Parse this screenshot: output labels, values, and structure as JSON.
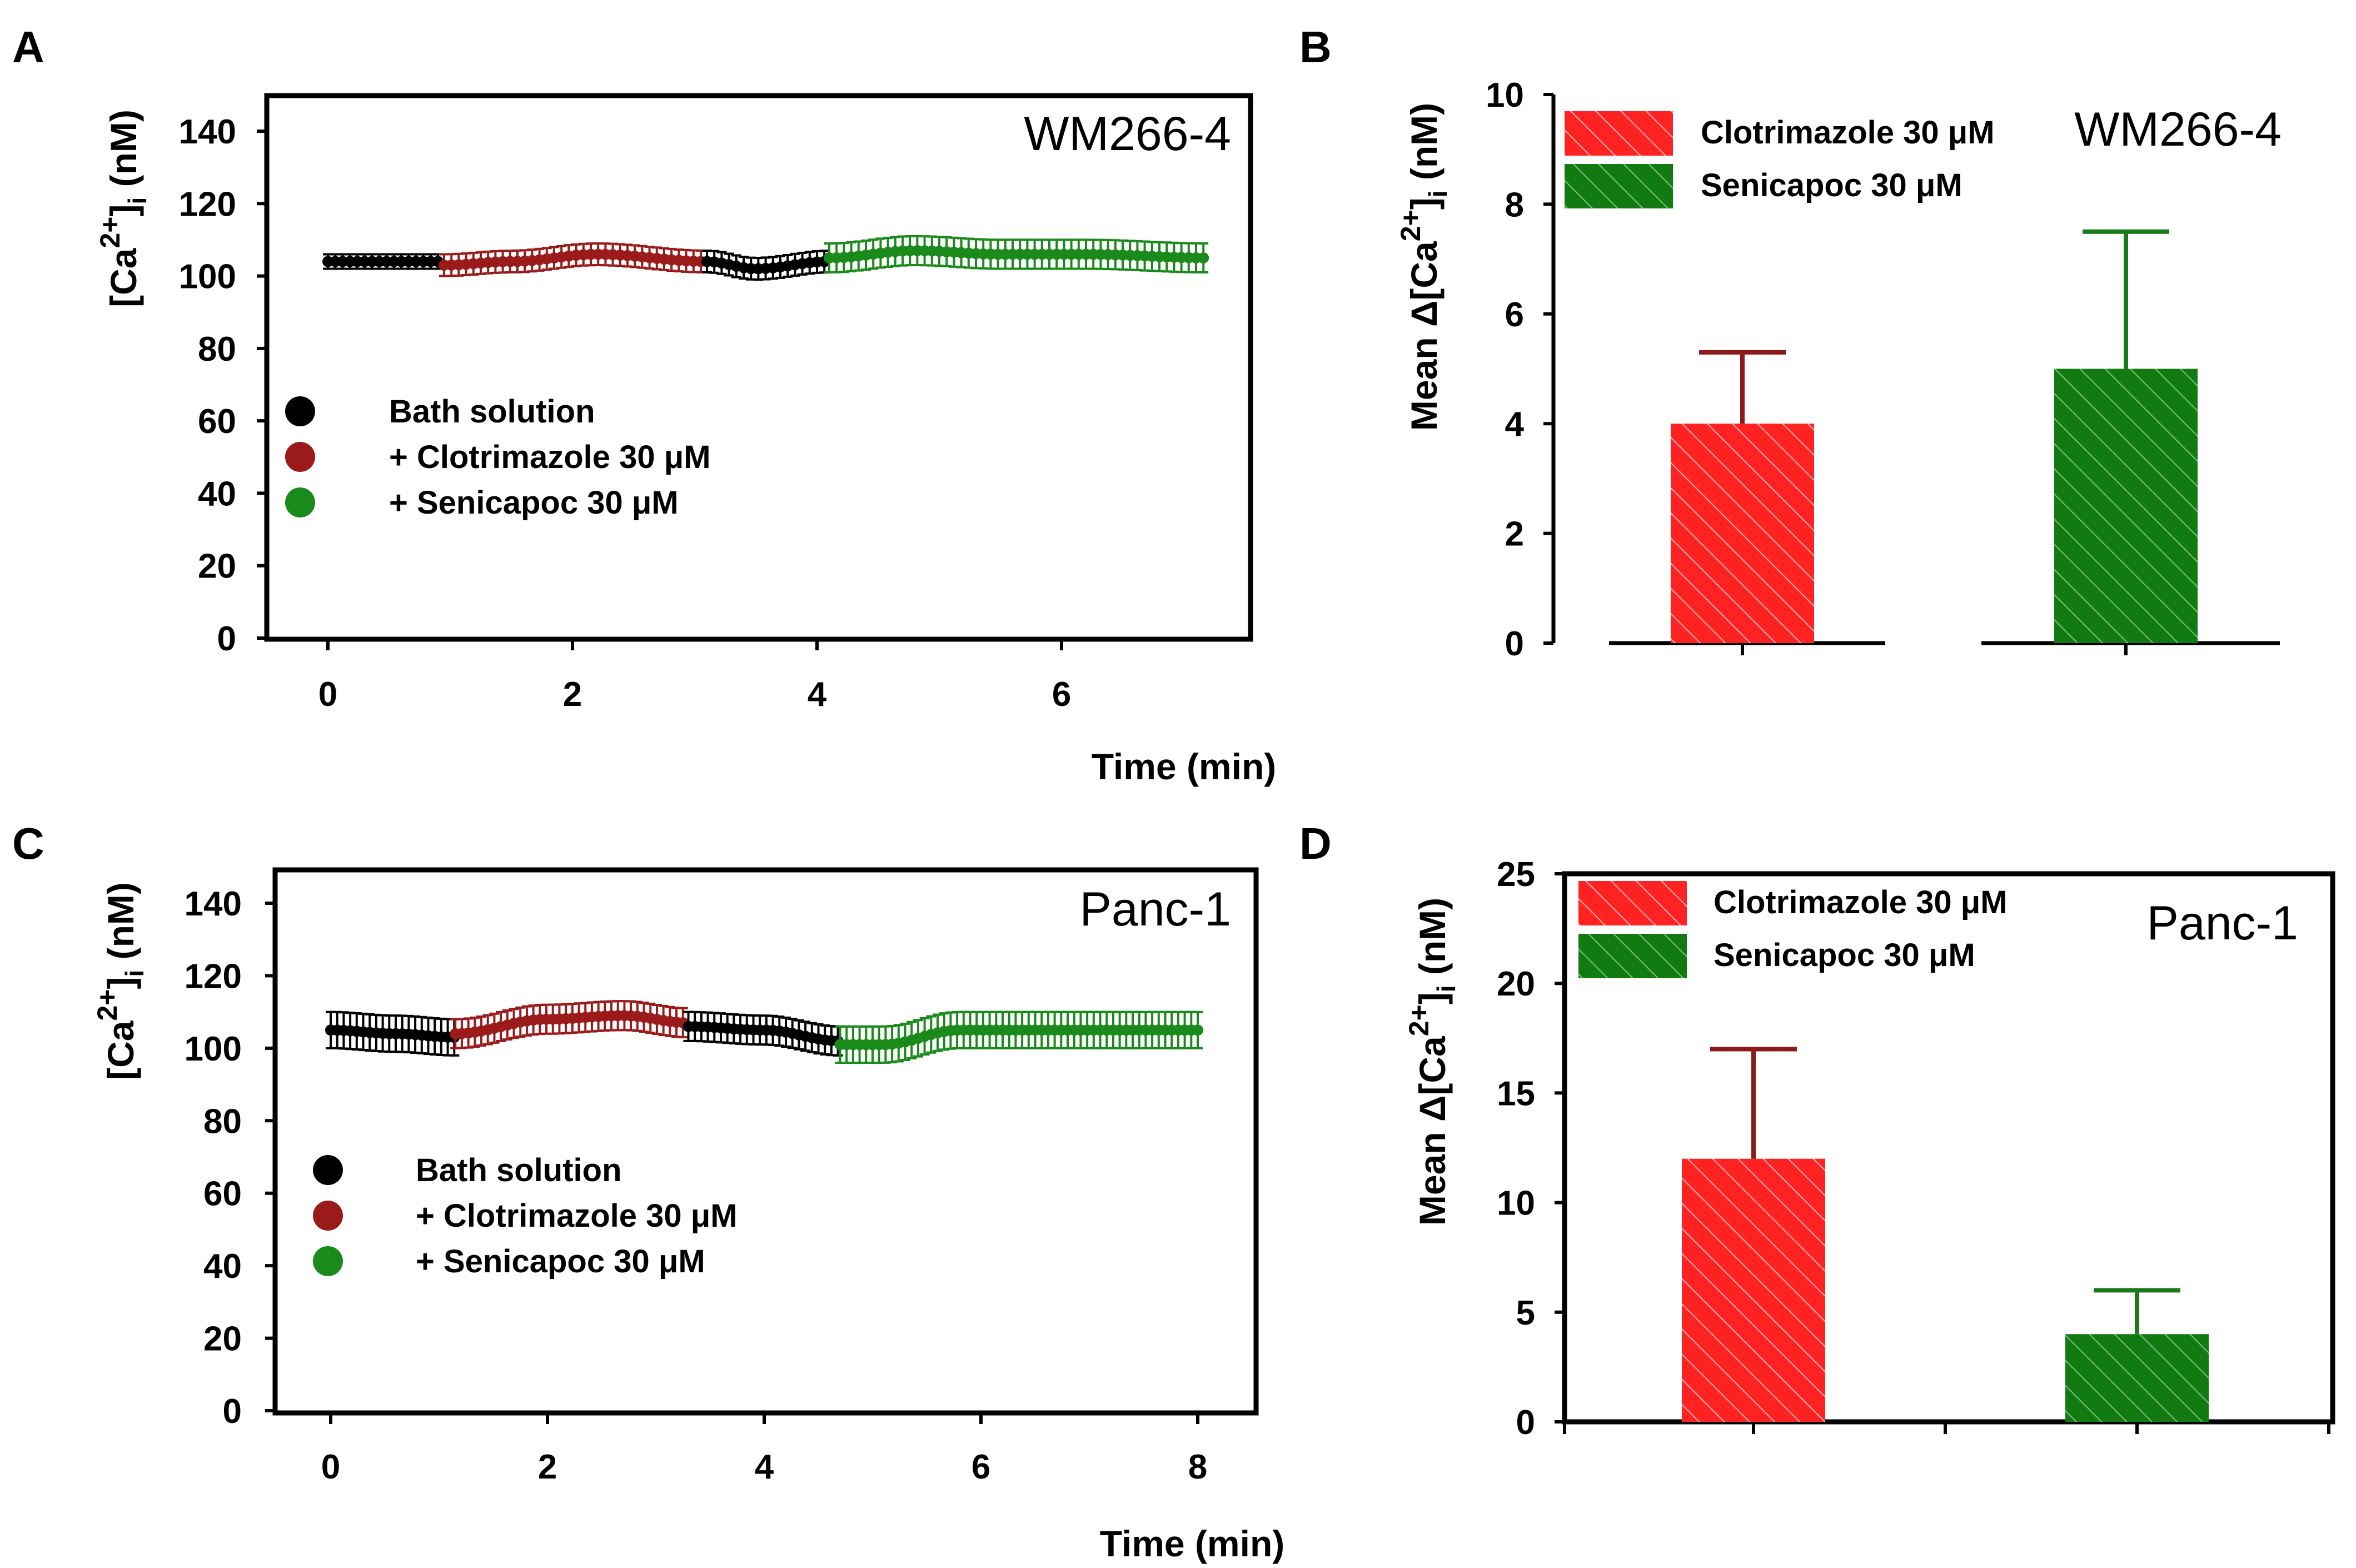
{
  "chart_data": [
    {
      "panel": "A",
      "type": "scatter",
      "cell_line": "WM266-4",
      "xlabel": "Time (min)",
      "ylabel": "[Ca2+]i (nM)",
      "xlim": [
        -0.5,
        7.5
      ],
      "ylim": [
        0,
        150
      ],
      "xticks": [
        0,
        2,
        4,
        6
      ],
      "yticks": [
        0,
        20,
        40,
        60,
        80,
        100,
        120,
        140
      ],
      "legend": [
        {
          "label": "Bath solution",
          "color": "#000000"
        },
        {
          "label": "+ Clotrimazole 30 μM",
          "color": "#9b1b1b"
        },
        {
          "label": "+ Senicapoc 30 μM",
          "color": "#1a8a1a"
        }
      ],
      "segments": [
        {
          "name": "Bath solution",
          "color": "#000000",
          "points": [
            [
              0,
              104
            ],
            [
              0.5,
              104
            ],
            [
              0.95,
              104
            ]
          ],
          "err": 2
        },
        {
          "name": "+ Clotrimazole 30 μM",
          "color": "#9b1b1b",
          "points": [
            [
              0.95,
              103
            ],
            [
              1.5,
              104
            ],
            [
              2.2,
              106
            ],
            [
              3.1,
              104
            ]
          ],
          "err": 3
        },
        {
          "name": "Bath solution",
          "color": "#000000",
          "points": [
            [
              3.1,
              104
            ],
            [
              3.5,
              102
            ],
            [
              4.1,
              104
            ]
          ],
          "err": 3
        },
        {
          "name": "+ Senicapoc 30 μM",
          "color": "#1a8a1a",
          "points": [
            [
              4.1,
              105
            ],
            [
              4.8,
              107
            ],
            [
              5.5,
              106
            ],
            [
              6.2,
              106
            ],
            [
              7.2,
              105
            ]
          ],
          "err": 4
        }
      ]
    },
    {
      "panel": "B",
      "type": "bar",
      "cell_line": "WM266-4",
      "ylabel": "Mean Δ[Ca2+]i (nM)",
      "ylim": [
        0,
        10
      ],
      "yticks": [
        0,
        2,
        4,
        6,
        8,
        10
      ],
      "categories": [
        "Clotrimazole 30 μM",
        "Senicapoc 30 μM"
      ],
      "values": [
        4.0,
        5.0
      ],
      "errors": [
        1.3,
        2.5
      ],
      "colors": [
        "#ff2222",
        "#117a11"
      ],
      "error_colors": [
        "#8b1a1a",
        "#1a7a1a"
      ]
    },
    {
      "panel": "C",
      "type": "scatter",
      "cell_line": "Panc-1",
      "xlabel": "Time (min)",
      "ylabel": "[Ca2+]i (nM)",
      "xlim": [
        -0.5,
        8.5
      ],
      "ylim": [
        0,
        150
      ],
      "xticks": [
        0,
        2,
        4,
        6,
        8
      ],
      "yticks": [
        0,
        20,
        40,
        60,
        80,
        100,
        120,
        140
      ],
      "legend": [
        {
          "label": "Bath solution",
          "color": "#000000"
        },
        {
          "label": "+ Clotrimazole 30 μM",
          "color": "#9b1b1b"
        },
        {
          "label": "+ Senicapoc 30 μM",
          "color": "#1a8a1a"
        }
      ],
      "segments": [
        {
          "name": "Bath solution",
          "color": "#000000",
          "points": [
            [
              0,
              105
            ],
            [
              0.6,
              104
            ],
            [
              1.15,
              103
            ]
          ],
          "err": 5
        },
        {
          "name": "+ Clotrimazole 30 μM",
          "color": "#9b1b1b",
          "points": [
            [
              1.15,
              104
            ],
            [
              2.0,
              108
            ],
            [
              2.7,
              109
            ],
            [
              3.3,
              107
            ]
          ],
          "err": 4
        },
        {
          "name": "Bath solution",
          "color": "#000000",
          "points": [
            [
              3.3,
              106
            ],
            [
              4.0,
              105
            ],
            [
              4.7,
              102
            ]
          ],
          "err": 4
        },
        {
          "name": "+ Senicapoc 30 μM",
          "color": "#1a8a1a",
          "points": [
            [
              4.7,
              101
            ],
            [
              5.1,
              101
            ],
            [
              5.8,
              105
            ],
            [
              7.0,
              105
            ],
            [
              8.0,
              105
            ]
          ],
          "err": 5
        }
      ]
    },
    {
      "panel": "D",
      "type": "bar",
      "cell_line": "Panc-1",
      "ylabel": "Mean Δ[Ca2+]i (nM)",
      "ylim": [
        0,
        25
      ],
      "yticks": [
        0,
        5,
        10,
        15,
        20,
        25
      ],
      "categories": [
        "Clotrimazole 30 μM",
        "Senicapoc 30 μM"
      ],
      "values": [
        12.0,
        4.0
      ],
      "errors": [
        5.0,
        2.0
      ],
      "colors": [
        "#ff2222",
        "#117a11"
      ],
      "error_colors": [
        "#8b1a1a",
        "#1a7a1a"
      ]
    }
  ]
}
